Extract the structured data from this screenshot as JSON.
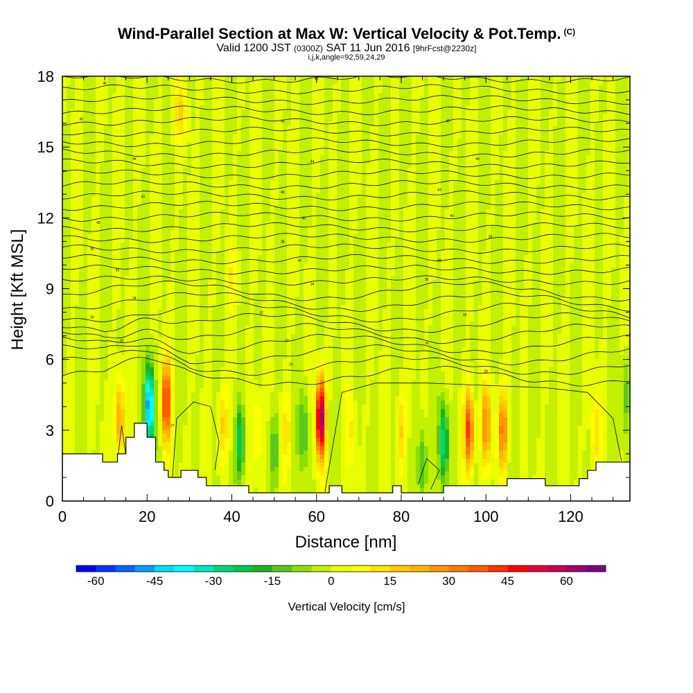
{
  "chart_data": {
    "type": "heatmap",
    "title": "Wind-Parallel Section at Max W: Vertical Velocity & Pot.Temp.",
    "title_mark": "(C)",
    "subtitle_parts": [
      "Valid 1200 JST",
      "(0300Z)",
      "SAT 11 Jun 2016",
      "[9hrFcst@2230z]"
    ],
    "subtitle2": "i,j,k,angle=92,59,24,29",
    "xlabel": "Distance [nm]",
    "ylabel": "Height [Kft MSL]",
    "xlim": [
      0,
      134
    ],
    "ylim": [
      0,
      18
    ],
    "x_ticks": [
      0,
      20,
      40,
      60,
      80,
      100,
      120
    ],
    "y_ticks": [
      0,
      3,
      6,
      9,
      12,
      15,
      18
    ],
    "colorbar": {
      "title": "Vertical Velocity [cm/s]",
      "range": [
        -65,
        70
      ],
      "labels": [
        -60,
        -45,
        -30,
        -15,
        0,
        15,
        30,
        45,
        60
      ],
      "colors": [
        "#0000ff",
        "#0a32ff",
        "#0064ff",
        "#00a0ff",
        "#00ddff",
        "#00ffff",
        "#00e8c0",
        "#00d77a",
        "#00c850",
        "#1db31d",
        "#5ac81e",
        "#8ee000",
        "#c2f000",
        "#e8ff00",
        "#ffff00",
        "#ffe600",
        "#ffcc00",
        "#ffb400",
        "#ff9600",
        "#ff7800",
        "#ff5a00",
        "#ff3200",
        "#ff0000",
        "#e6003c",
        "#c80050",
        "#a0006e",
        "#7d0082"
      ]
    },
    "updraft_cores": [
      {
        "x": 13.5,
        "y": 3.5,
        "w": 28
      },
      {
        "x": 24.5,
        "y": 4.2,
        "w": 45
      },
      {
        "x": 38,
        "y": 3.3,
        "w": 18
      },
      {
        "x": 46,
        "y": 3.0,
        "w": 14
      },
      {
        "x": 53,
        "y": 3.0,
        "w": 12
      },
      {
        "x": 61,
        "y": 3.5,
        "w": 68
      },
      {
        "x": 68,
        "y": 3.0,
        "w": 10
      },
      {
        "x": 80,
        "y": 3.0,
        "w": 16
      },
      {
        "x": 96,
        "y": 3.0,
        "w": 45
      },
      {
        "x": 100,
        "y": 3.2,
        "w": 30
      },
      {
        "x": 104,
        "y": 3.0,
        "w": 34
      },
      {
        "x": 126,
        "y": 3.0,
        "w": 12
      },
      {
        "x": 28,
        "y": 16.5,
        "w": 14
      },
      {
        "x": 40,
        "y": 9.5,
        "w": 8
      }
    ],
    "downdraft_cores": [
      {
        "x": 20.5,
        "y": 4.0,
        "w": -52
      },
      {
        "x": 42,
        "y": 2.5,
        "w": -25
      },
      {
        "x": 50,
        "y": 2.2,
        "w": -14
      },
      {
        "x": 57,
        "y": 3.0,
        "w": -18
      },
      {
        "x": 90,
        "y": 2.5,
        "w": -30
      },
      {
        "x": 85,
        "y": 1.5,
        "w": -18
      },
      {
        "x": 133,
        "y": 4.5,
        "w": -14
      }
    ],
    "theta_contour_labels": [
      {
        "x": 10,
        "y": 17.7,
        "v": "46"
      },
      {
        "x": 60,
        "y": 17.9,
        "v": "46"
      },
      {
        "x": 4.5,
        "y": 16.2,
        "v": "45"
      },
      {
        "x": 52,
        "y": 16.1,
        "v": "45"
      },
      {
        "x": 91,
        "y": 16.1,
        "v": "45"
      },
      {
        "x": 17,
        "y": 14.5,
        "v": "44"
      },
      {
        "x": 59,
        "y": 14.4,
        "v": "44"
      },
      {
        "x": 98,
        "y": 14.5,
        "v": "44"
      },
      {
        "x": 19,
        "y": 12.9,
        "v": "43"
      },
      {
        "x": 52,
        "y": 13.1,
        "v": "43"
      },
      {
        "x": 89,
        "y": 13.2,
        "v": "43"
      },
      {
        "x": 8.5,
        "y": 11.8,
        "v": "40"
      },
      {
        "x": 57,
        "y": 12.0,
        "v": "40"
      },
      {
        "x": 92,
        "y": 12.1,
        "v": "40"
      },
      {
        "x": 101,
        "y": 11.2,
        "v": "39"
      },
      {
        "x": 7,
        "y": 10.7,
        "v": "38"
      },
      {
        "x": 52,
        "y": 11.0,
        "v": "38"
      },
      {
        "x": 89,
        "y": 10.2,
        "v": "38"
      },
      {
        "x": 13,
        "y": 9.8,
        "v": "36"
      },
      {
        "x": 56,
        "y": 10.2,
        "v": "36"
      },
      {
        "x": 86,
        "y": 9.4,
        "v": "36"
      },
      {
        "x": 17,
        "y": 8.6,
        "v": "34"
      },
      {
        "x": 59,
        "y": 9.2,
        "v": "34"
      },
      {
        "x": 47,
        "y": 8.0,
        "v": "32"
      },
      {
        "x": 95,
        "y": 7.9,
        "v": "32"
      },
      {
        "x": 7,
        "y": 7.8,
        "v": "30"
      },
      {
        "x": 14,
        "y": 6.8,
        "v": "30"
      },
      {
        "x": 53,
        "y": 6.8,
        "v": "30"
      },
      {
        "x": 86,
        "y": 6.7,
        "v": "30"
      },
      {
        "x": 54,
        "y": 5.8,
        "v": "29"
      },
      {
        "x": 100,
        "y": 5.5,
        "v": "28"
      },
      {
        "x": 26,
        "y": 3.2,
        "v": "27"
      }
    ],
    "terrain": [
      [
        0,
        2
      ],
      [
        9.5,
        2
      ],
      [
        9.5,
        1.65
      ],
      [
        13,
        1.65
      ],
      [
        13,
        2
      ],
      [
        15,
        2
      ],
      [
        15,
        2.7
      ],
      [
        17,
        2.7
      ],
      [
        17,
        3.3
      ],
      [
        20,
        3.3
      ],
      [
        20,
        2.7
      ],
      [
        22,
        2.7
      ],
      [
        22,
        1.65
      ],
      [
        24,
        1.65
      ],
      [
        24,
        1.3
      ],
      [
        25,
        1.3
      ],
      [
        25,
        1.0
      ],
      [
        28,
        1.0
      ],
      [
        28,
        1.3
      ],
      [
        32,
        1.3
      ],
      [
        32,
        1.0
      ],
      [
        34,
        1.0
      ],
      [
        34,
        0.65
      ],
      [
        44,
        0.65
      ],
      [
        44,
        0.35
      ],
      [
        63,
        0.35
      ],
      [
        63,
        0.65
      ],
      [
        66,
        0.65
      ],
      [
        66,
        0.35
      ],
      [
        78,
        0.35
      ],
      [
        78,
        0.65
      ],
      [
        80,
        0.65
      ],
      [
        80,
        0.35
      ],
      [
        90,
        0.35
      ],
      [
        90,
        0.65
      ],
      [
        105,
        0.65
      ],
      [
        105,
        0.95
      ],
      [
        114,
        0.95
      ],
      [
        114,
        0.65
      ],
      [
        122,
        0.65
      ],
      [
        122,
        0.95
      ],
      [
        124,
        0.95
      ],
      [
        124,
        1.3
      ],
      [
        126,
        1.3
      ],
      [
        126,
        1.65
      ],
      [
        134,
        1.65
      ],
      [
        134,
        0
      ],
      [
        0,
        0
      ]
    ]
  }
}
